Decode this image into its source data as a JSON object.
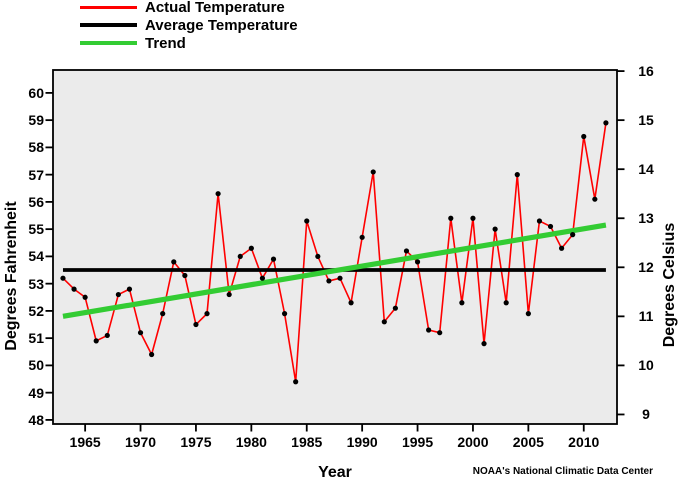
{
  "legend": {
    "items": [
      {
        "label": "Actual Temperature",
        "color": "#ff0000"
      },
      {
        "label": "Average Temperature",
        "color": "#000000"
      },
      {
        "label": "Trend",
        "color": "#33cc33"
      }
    ]
  },
  "axes": {
    "x_label": "Year",
    "y_left_label": "Degrees Fahrenheit",
    "y_right_label": "Degrees Celsius"
  },
  "credit": "NOAA's National Climatic Data Center",
  "chart_data": {
    "type": "line",
    "title": "",
    "xlabel": "Year",
    "ylabel_left": "Degrees Fahrenheit",
    "ylabel_right": "Degrees Celsius",
    "grid": false,
    "legend_position": "top-left",
    "plot_background": "#ebebeb",
    "xlim": [
      1962.1,
      2013
    ],
    "ylim_fahrenheit": [
      47.85,
      60.84
    ],
    "x_ticks": [
      1965,
      1970,
      1975,
      1980,
      1985,
      1990,
      1995,
      2000,
      2005,
      2010
    ],
    "y_ticks_fahrenheit": [
      48,
      49,
      50,
      51,
      52,
      53,
      54,
      55,
      56,
      57,
      58,
      59,
      60
    ],
    "y_ticks_celsius": [
      9,
      10,
      11,
      12,
      13,
      14,
      15,
      16
    ],
    "x": [
      1963,
      1964,
      1965,
      1966,
      1967,
      1968,
      1969,
      1970,
      1971,
      1972,
      1973,
      1974,
      1975,
      1976,
      1977,
      1978,
      1979,
      1980,
      1981,
      1982,
      1983,
      1984,
      1985,
      1986,
      1987,
      1988,
      1989,
      1990,
      1991,
      1992,
      1993,
      1994,
      1995,
      1996,
      1997,
      1998,
      1999,
      2000,
      2001,
      2002,
      2003,
      2004,
      2005,
      2006,
      2007,
      2008,
      2009,
      2010,
      2011,
      2012
    ],
    "series": [
      {
        "name": "Actual Temperature",
        "color": "#ff0000",
        "marker": "black-dot",
        "values": [
          53.2,
          52.8,
          52.5,
          50.9,
          51.1,
          52.6,
          52.8,
          51.2,
          50.4,
          51.9,
          53.8,
          53.3,
          51.5,
          51.9,
          56.3,
          52.6,
          54.0,
          54.3,
          53.2,
          53.9,
          51.9,
          49.4,
          55.3,
          54.0,
          53.1,
          53.2,
          52.3,
          54.7,
          57.1,
          51.6,
          52.1,
          54.2,
          53.8,
          51.3,
          51.2,
          55.4,
          52.3,
          55.4,
          50.8,
          55.0,
          52.3,
          57.0,
          51.9,
          55.3,
          55.1,
          54.3,
          54.8,
          58.4,
          56.1,
          58.9
        ]
      },
      {
        "name": "Average Temperature",
        "color": "#000000",
        "style": "horizontal-line",
        "value_f": 53.5
      },
      {
        "name": "Trend",
        "color": "#33cc33",
        "style": "linear",
        "start_f": 51.8,
        "end_f": 55.15
      }
    ]
  }
}
